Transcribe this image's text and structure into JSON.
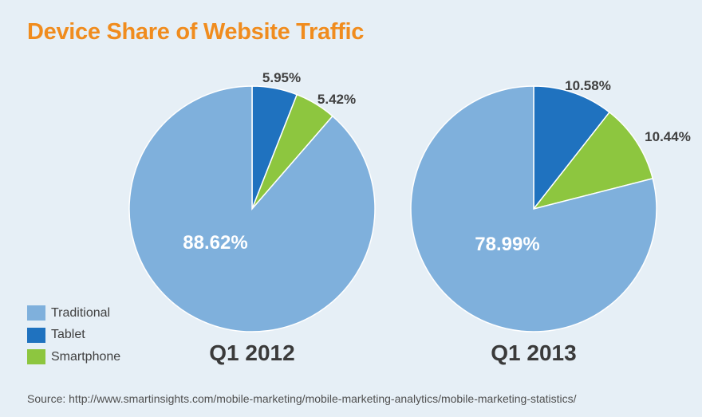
{
  "title": "Device Share of Website Traffic",
  "source": "Source: http://www.smartinsights.com/mobile-marketing/mobile-marketing-analytics/mobile-marketing-statistics/",
  "colors": {
    "title": "#f08c1e",
    "traditional": "#7fb0dc",
    "tablet": "#1f72bf",
    "smartphone": "#8dc63f",
    "background": "#e6eff6"
  },
  "legend": [
    {
      "label": "Traditional",
      "color": "#7fb0dc"
    },
    {
      "label": "Tablet",
      "color": "#1f72bf"
    },
    {
      "label": "Smartphone",
      "color": "#8dc63f"
    }
  ],
  "chart_data": [
    {
      "type": "pie",
      "title": "Q1 2012",
      "categories": [
        "Tablet",
        "Smartphone",
        "Traditional"
      ],
      "values": [
        5.95,
        5.42,
        88.62
      ],
      "labels": [
        "5.95%",
        "5.42%",
        "88.62%"
      ]
    },
    {
      "type": "pie",
      "title": "Q1 2013",
      "categories": [
        "Tablet",
        "Smartphone",
        "Traditional"
      ],
      "values": [
        10.58,
        10.44,
        78.99
      ],
      "labels": [
        "10.58%",
        "10.44%",
        "78.99%"
      ]
    }
  ]
}
